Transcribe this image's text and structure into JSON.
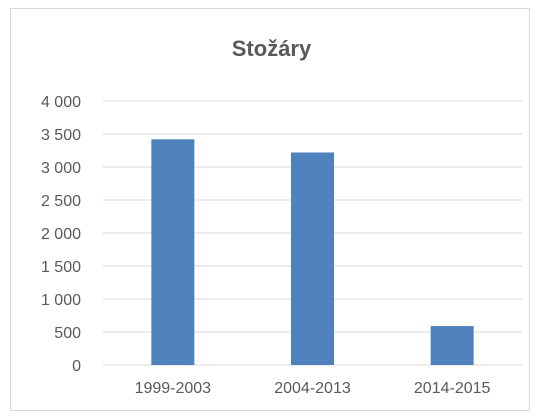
{
  "chart_data": {
    "type": "bar",
    "title": "Stožáry",
    "categories": [
      "1999-2003",
      "2004-2013",
      "2014-2015"
    ],
    "values": [
      3420,
      3220,
      590
    ],
    "ylim": [
      0,
      4000
    ],
    "yticks": [
      0,
      500,
      1000,
      1500,
      2000,
      2500,
      3000,
      3500,
      4000
    ],
    "ytick_labels": [
      "0",
      "500",
      "1 000",
      "1 500",
      "2 000",
      "2 500",
      "3 000",
      "3 500",
      "4 000"
    ],
    "xlabel": "",
    "ylabel": "",
    "grid": true,
    "legend": "none",
    "colors": {
      "bar": "#4f81bd",
      "grid": "#d9d9d9",
      "text": "#595959",
      "border": "#d9d9d9"
    }
  }
}
